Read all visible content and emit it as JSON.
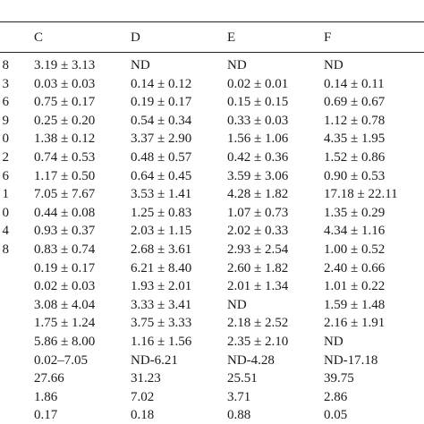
{
  "table": {
    "header": [
      "C",
      "D",
      "E",
      "F"
    ],
    "rows": [
      {
        "left": "8",
        "cells": [
          "3.19 ± 3.13",
          "ND",
          "ND",
          "ND"
        ]
      },
      {
        "left": "3",
        "cells": [
          "0.03 ± 0.03",
          "0.14 ± 0.12",
          "0.02 ± 0.01",
          "0.14 ± 0.11"
        ]
      },
      {
        "left": "6",
        "cells": [
          "0.75 ± 0.17",
          "0.19 ± 0.17",
          "0.15 ± 0.15",
          "0.69 ± 0.67"
        ]
      },
      {
        "left": "9",
        "cells": [
          "0.25 ± 0.20",
          "0.54 ± 0.34",
          "0.33 ± 0.03",
          "1.12 ± 0.78"
        ]
      },
      {
        "left": "0",
        "cells": [
          "1.38 ± 0.12",
          "3.37 ± 2.90",
          "1.56 ± 1.06",
          "4.35 ± 1.95"
        ]
      },
      {
        "left": "2",
        "cells": [
          "0.74 ± 0.53",
          "0.48 ± 0.57",
          "0.42 ± 0.36",
          "1.52 ± 0.86"
        ]
      },
      {
        "left": "6",
        "cells": [
          "1.17 ± 0.50",
          "0.64 ± 0.45",
          "3.59 ± 3.06",
          "0.90 ± 0.53"
        ]
      },
      {
        "left": "1",
        "cells": [
          "7.05 ± 7.67",
          "3.53 ± 1.41",
          "4.28 ± 1.82",
          "17.18 ± 22.11"
        ]
      },
      {
        "left": "0",
        "cells": [
          "0.44 ± 0.08",
          "1.25 ± 0.83",
          "1.07 ± 0.73",
          "1.35 ± 0.29"
        ]
      },
      {
        "left": "4",
        "cells": [
          "0.93 ± 0.37",
          "2.03 ± 1.15",
          "2.02 ± 0.33",
          "4.34 ± 1.16"
        ]
      },
      {
        "left": "8",
        "cells": [
          "0.83 ± 0.74",
          "2.68 ± 3.61",
          "2.93 ± 2.54",
          "1.00 ± 0.52"
        ]
      },
      {
        "cells": [
          "0.19 ± 0.17",
          "6.21 ± 8.40",
          "2.60 ± 1.82",
          "2.40 ± 0.66"
        ]
      },
      {
        "cells": [
          "0.02 ± 0.03",
          "1.93 ± 2.01",
          "2.01 ± 1.34",
          "1.01 ± 0.22"
        ]
      },
      {
        "cells": [
          "3.08 ± 4.04",
          "3.33 ± 3.41",
          "ND",
          "1.59 ± 1.48"
        ]
      },
      {
        "cells": [
          "1.75 ± 1.24",
          "3.75 ± 3.33",
          "2.18 ± 2.52",
          "2.16 ± 1.91"
        ]
      },
      {
        "cells": [
          "5.86 ± 8.00",
          "1.16 ± 1.56",
          "2.35 ± 2.10",
          "ND"
        ]
      },
      {
        "cells": [
          "0.02–7.05",
          "ND-6.21",
          "ND-4.28",
          "ND-17.18"
        ]
      },
      {
        "cells": [
          "27.66",
          "31.23",
          "25.51",
          "39.75"
        ]
      },
      {
        "cells": [
          "1.86",
          "7.02",
          "3.71",
          "2.86"
        ]
      },
      {
        "cells": [
          "0.17",
          "0.18",
          "0.88",
          "0.05"
        ]
      }
    ]
  }
}
